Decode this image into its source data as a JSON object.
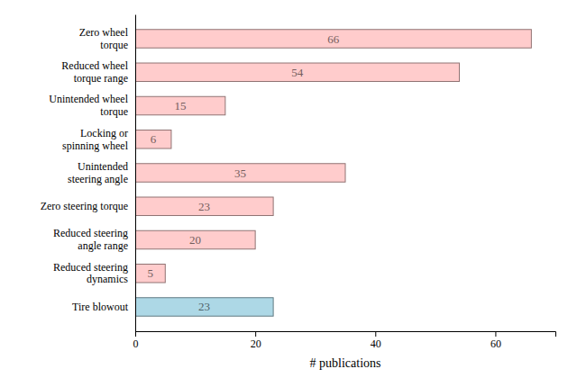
{
  "chart_data": {
    "type": "bar",
    "orientation": "horizontal",
    "categories": [
      "Tire blowout",
      "Reduced steering\ndynamics",
      "Reduced steering\nangle range",
      "Zero steering torque",
      "Unintended\nsteering angle",
      "Locking or\nspinning wheel",
      "Unintended wheel\ntorque",
      "Reduced wheel\ntorque range",
      "Zero wheel\ntorque"
    ],
    "values": [
      23,
      5,
      20,
      23,
      35,
      6,
      15,
      54,
      66
    ],
    "colors": [
      "#add8e6",
      "#ffcccc",
      "#ffcccc",
      "#ffcccc",
      "#ffcccc",
      "#ffcccc",
      "#ffcccc",
      "#ffcccc",
      "#ffcccc"
    ],
    "xlabel": "# publications",
    "xlim": [
      0,
      70
    ],
    "xticks": [
      0,
      20,
      40,
      60
    ],
    "grid": false,
    "data_labels": true
  }
}
